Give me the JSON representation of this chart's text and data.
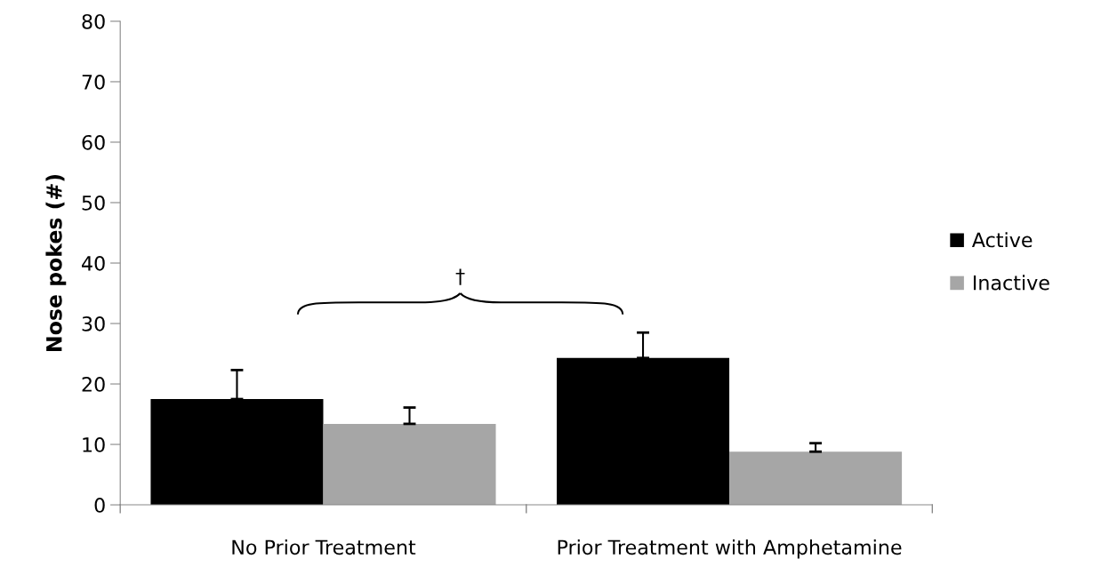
{
  "chart_data": {
    "type": "bar",
    "ylabel": "Nose pokes (#)",
    "categories": [
      "No Prior Treatment",
      "Prior Treatment with Amphetamine"
    ],
    "series": [
      {
        "name": "Active",
        "color": "#000000",
        "values": [
          17.5,
          24.3
        ],
        "errors": [
          4.8,
          4.2
        ]
      },
      {
        "name": "Inactive",
        "color": "#a6a6a6",
        "values": [
          13.4,
          8.8
        ],
        "errors": [
          2.7,
          1.4
        ]
      }
    ],
    "ylim": [
      0,
      80
    ],
    "yticks": [
      0,
      10,
      20,
      30,
      40,
      50,
      60,
      70,
      80
    ],
    "annotations": [
      "†"
    ],
    "legend": "right",
    "grid": false
  }
}
